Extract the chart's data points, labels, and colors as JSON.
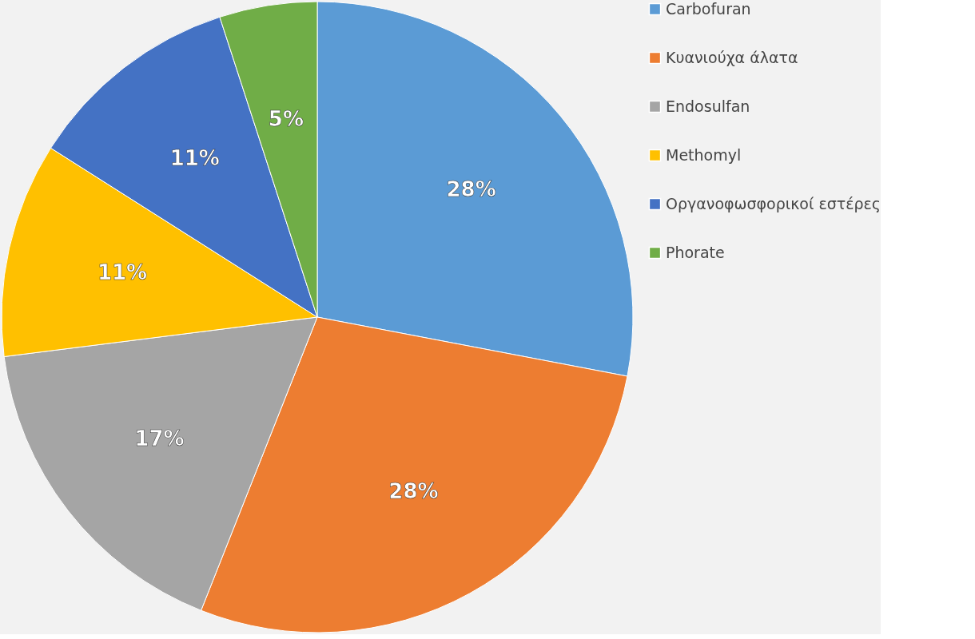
{
  "chart_data": {
    "type": "pie",
    "categories": [
      "Carbofuran",
      "Κυανιούχα άλατα",
      "Endosulfan",
      "Methomyl",
      "Οργανοφωσφορικοί εστέρες",
      "Phorate"
    ],
    "values": [
      28,
      28,
      17,
      11,
      11,
      5
    ],
    "colors": [
      "#5b9bd5",
      "#ed7d31",
      "#a5a5a5",
      "#ffc000",
      "#4472c4",
      "#70ad47"
    ],
    "value_labels": [
      "28%",
      "28%",
      "17%",
      "11%",
      "11%",
      "5%"
    ],
    "legend": "right"
  }
}
